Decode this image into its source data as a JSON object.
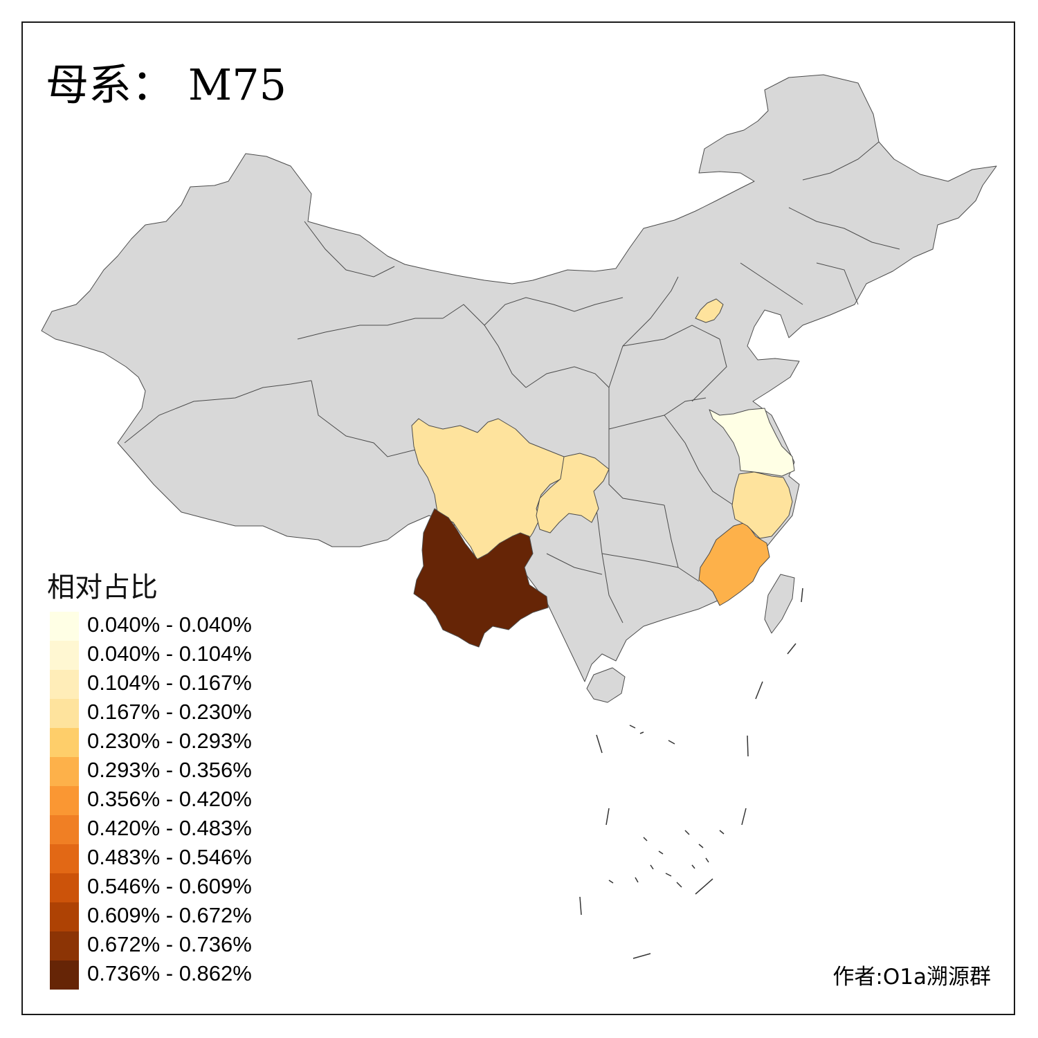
{
  "title": "母系： M75",
  "legend": {
    "title": "相对占比",
    "bins": [
      {
        "label": "0.040% - 0.040%",
        "color": "#ffffe5"
      },
      {
        "label": "0.040% - 0.104%",
        "color": "#fff7d2"
      },
      {
        "label": "0.104% - 0.167%",
        "color": "#ffedb8"
      },
      {
        "label": "0.167% - 0.230%",
        "color": "#fee39d"
      },
      {
        "label": "0.230% - 0.293%",
        "color": "#fece6a"
      },
      {
        "label": "0.293% - 0.356%",
        "color": "#fdb14a"
      },
      {
        "label": "0.356% - 0.420%",
        "color": "#fa9733"
      },
      {
        "label": "0.420% - 0.483%",
        "color": "#f07f24"
      },
      {
        "label": "0.483% - 0.546%",
        "color": "#e26815"
      },
      {
        "label": "0.546% - 0.609%",
        "color": "#cc530a"
      },
      {
        "label": "0.609% - 0.672%",
        "color": "#ae4204"
      },
      {
        "label": "0.672% - 0.736%",
        "color": "#8c3405"
      },
      {
        "label": "0.736% - 0.862%",
        "color": "#662506"
      }
    ]
  },
  "credit": "作者:O1a溯源群",
  "colors": {
    "no_data": "#d8d8d8",
    "border": "#4a4a4a",
    "frame": "#1a1a1a"
  },
  "regions": [
    {
      "id": "yunnan",
      "bin": 12
    },
    {
      "id": "fujian",
      "bin": 5
    },
    {
      "id": "sichuan",
      "bin": 3
    },
    {
      "id": "chongqing",
      "bin": 3
    },
    {
      "id": "zhejiang",
      "bin": 3
    },
    {
      "id": "beijing",
      "bin": 3
    },
    {
      "id": "jiangsu",
      "bin": 0
    }
  ]
}
